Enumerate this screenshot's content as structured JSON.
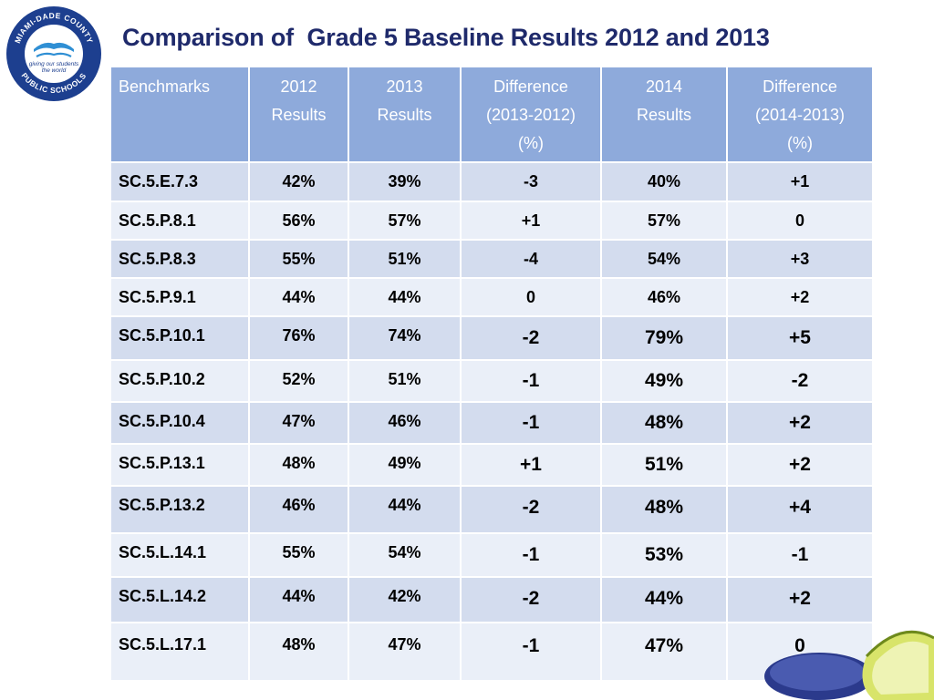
{
  "slide": {
    "title": "Comparison of  Grade 5 Baseline Results 2012 and 2013",
    "logo": {
      "ring_text_top": "MIAMI-DADE COUNTY",
      "ring_text_bottom": "PUBLIC SCHOOLS",
      "tagline_line1": "giving our students",
      "tagline_line2": "the world"
    },
    "table": {
      "headers": [
        [
          "Benchmarks"
        ],
        [
          "2012",
          "Results"
        ],
        [
          "2013",
          "Results"
        ],
        [
          "Difference",
          "(2013-2012)",
          "(%)"
        ],
        [
          "2014",
          "Results"
        ],
        [
          "Difference",
          "(2014-2013)",
          "(%)"
        ]
      ],
      "rows": [
        [
          "SC.5.E.7.3",
          "42%",
          "39%",
          "-3",
          "40%",
          "+1"
        ],
        [
          "SC.5.P.8.1",
          "56%",
          "57%",
          "+1",
          "57%",
          "0"
        ],
        [
          "SC.5.P.8.3",
          "55%",
          "51%",
          "-4",
          "54%",
          "+3"
        ],
        [
          "SC.5.P.9.1",
          "44%",
          "44%",
          "0",
          "46%",
          "+2"
        ],
        [
          "SC.5.P.10.1",
          "76%",
          "74%",
          "-2",
          "79%",
          "+5"
        ],
        [
          "SC.5.P.10.2",
          "52%",
          "51%",
          "-1",
          "49%",
          "-2"
        ],
        [
          "SC.5.P.10.4",
          "47%",
          "46%",
          "-1",
          "48%",
          "+2"
        ],
        [
          "SC.5.P.13.1",
          "48%",
          "49%",
          "+1",
          "51%",
          "+2"
        ],
        [
          "SC.5.P.13.2",
          "46%",
          "44%",
          "-2",
          "48%",
          "+4"
        ],
        [
          "SC.5.L.14.1",
          "55%",
          "54%",
          "-1",
          "53%",
          "-1"
        ],
        [
          "SC.5.L.14.2",
          "44%",
          "42%",
          "-2",
          "44%",
          "+2"
        ],
        [
          "SC.5.L.17.1",
          "48%",
          "47%",
          "-1",
          "47%",
          "0"
        ]
      ]
    },
    "colors": {
      "title": "#1f2a6b",
      "header_bg": "#8eaadb",
      "row_dark": "#d3dcee",
      "row_light": "#eaeff8",
      "logo_blue": "#1d3f8f"
    }
  }
}
